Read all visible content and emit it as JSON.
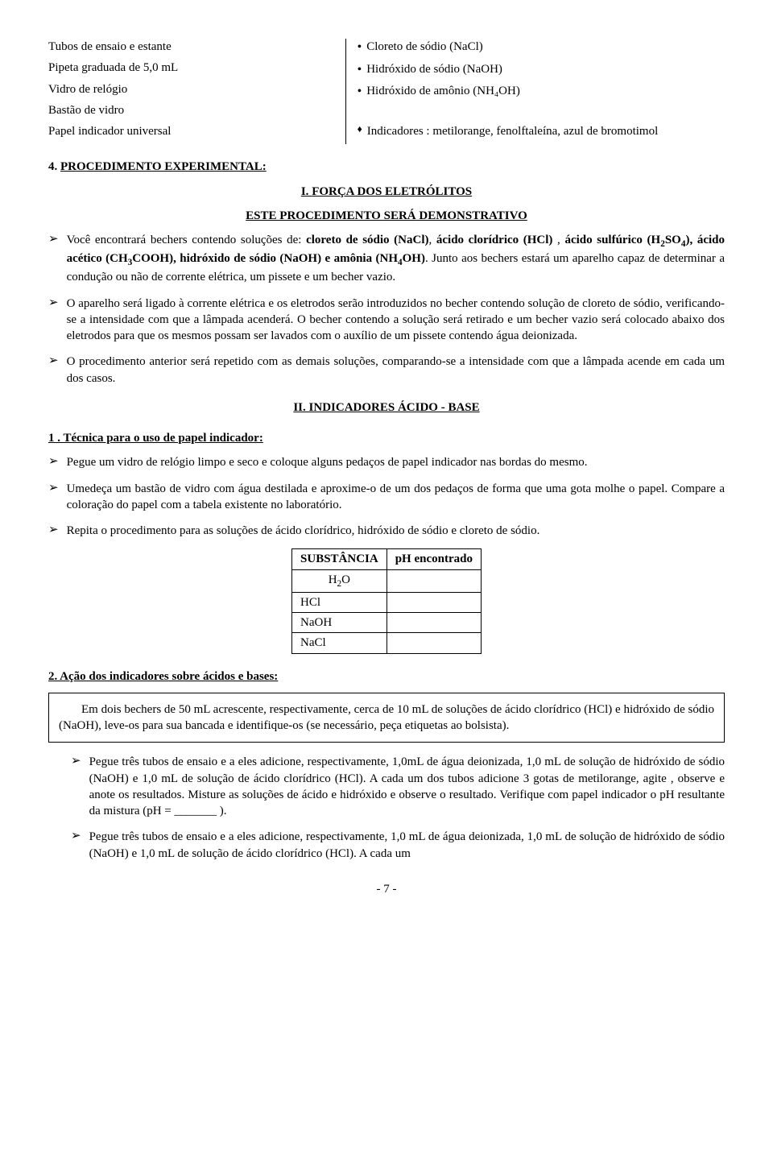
{
  "top": {
    "left": [
      "Tubos de ensaio e estante",
      "Pipeta graduada de 5,0 mL",
      "Vidro de relógio",
      "Bastão de vidro",
      "Papel indicador universal"
    ],
    "right_bullets": [
      "Cloreto de sódio (NaCl)",
      "Hidróxido de sódio (NaOH)",
      "Hidróxido de amônio (NH₄OH)"
    ],
    "right_diamond": "Indicadores : metilorange, fenolftaleína, azul de bromotimol"
  },
  "section4": {
    "heading_prefix": "4. ",
    "heading_text": "PROCEDIMENTO EXPERIMENTAL:",
    "sub_i_prefix": "I. ",
    "sub_i_text": "FORÇA DOS ELETRÓLITOS",
    "sub_line_a": "ESTE PROCEDIMENTO ",
    "sub_line_b": "SERÁ",
    "sub_line_c": " DEMONSTRATIVO",
    "items": [
      "Você encontrará bechers contendo soluções de: <b>cloreto de sódio (NaCl)</b>, <b>ácido clorídrico (HCl)</b> , <b>ácido sulfúrico (H<sub>2</sub>SO<sub>4</sub>), ácido acético (CH<sub>3</sub>COOH), hidróxido de sódio (NaOH) e amônia (NH<sub>4</sub>OH)</b>. Junto aos bechers estará um aparelho capaz de determinar a condução ou não de corrente elétrica, um pissete e um becher vazio.",
      "O aparelho será ligado à corrente elétrica e os eletrodos serão introduzidos no becher contendo solução de cloreto de sódio, verificando-se a intensidade com que a lâmpada acenderá. O becher contendo a solução será retirado e um becher vazio será colocado abaixo dos eletrodos para que os mesmos possam ser lavados com o auxílio de um pissete contendo água deionizada.",
      "O procedimento anterior será repetido com as demais soluções, comparando-se a intensidade com que a lâmpada acende em cada um dos casos."
    ]
  },
  "section_ii": {
    "heading_prefix": "II. ",
    "heading_text": "INDICADORES ÁCIDO - BASE"
  },
  "tech1": {
    "heading": "1 . Técnica para o uso de papel indicador:",
    "items": [
      "Pegue um vidro de relógio limpo e seco e coloque alguns pedaços de papel indicador nas bordas do mesmo.",
      "Umedeça um bastão de vidro com água destilada e aproxime-o de um dos pedaços de forma que uma gota molhe o papel. Compare a coloração do papel com a tabela existente no laboratório.",
      "Repita o procedimento para as soluções de ácido clorídrico, hidróxido de sódio e cloreto de sódio."
    ]
  },
  "table": {
    "header": [
      "SUBSTÂNCIA",
      "pH encontrado"
    ],
    "rows": [
      [
        "H<sub>2</sub>O",
        ""
      ],
      [
        "HCl",
        ""
      ],
      [
        "NaOH",
        ""
      ],
      [
        "NaCl",
        ""
      ]
    ]
  },
  "tech2": {
    "heading": "2. Ação dos indicadores sobre ácidos e bases:",
    "box": "Em dois bechers de 50 mL acrescente, respectivamente, cerca de 10 mL de soluções de ácido clorídrico (HCl) e hidróxido de sódio (NaOH), leve-os para sua bancada e identifique-os (se necessário, peça etiquetas ao bolsista).",
    "items": [
      "Pegue três tubos de ensaio e a eles adicione, respectivamente, 1,0mL de água deionizada, 1,0 mL de solução de hidróxido de sódio (NaOH) e 1,0 mL de solução de ácido clorídrico (HCl). A cada um dos tubos adicione 3 gotas de metilorange, agite , observe e anote os resultados. Misture as soluções de ácido e hidróxido e observe o resultado. Verifique com papel indicador o pH resultante da mistura (pH = _______ ).",
      "Pegue três tubos de ensaio e a eles adicione, respectivamente, 1,0 mL de água deionizada, 1,0 mL de solução de hidróxido de sódio (NaOH) e 1,0 mL de solução de ácido clorídrico (HCl). A cada um"
    ]
  },
  "page_number": "- 7 -"
}
